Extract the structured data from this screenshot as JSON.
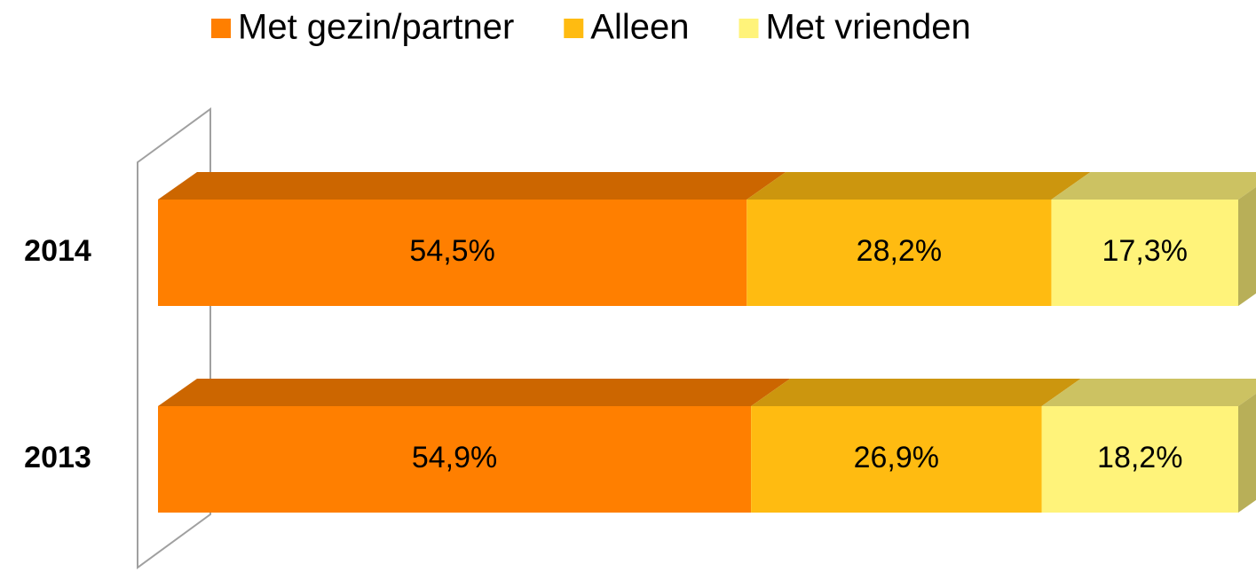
{
  "chart_data": {
    "type": "bar",
    "stacked": true,
    "orientation": "horizontal",
    "categories": [
      "2014",
      "2013"
    ],
    "series": [
      {
        "name": "Met gezin/partner",
        "color": "#ff7f00",
        "values": [
          54.5,
          54.9
        ],
        "value_labels": [
          "54,5%",
          "54,9%"
        ]
      },
      {
        "name": "Alleen",
        "color": "#ffbb11",
        "values": [
          28.2,
          26.9
        ],
        "value_labels": [
          "28,2%",
          "26,9%"
        ]
      },
      {
        "name": "Met vrienden",
        "color": "#fff37a",
        "values": [
          17.3,
          18.2
        ],
        "value_labels": [
          "17,3%",
          "18,2%"
        ]
      }
    ],
    "xlim": [
      0,
      100
    ],
    "legend": "top"
  }
}
